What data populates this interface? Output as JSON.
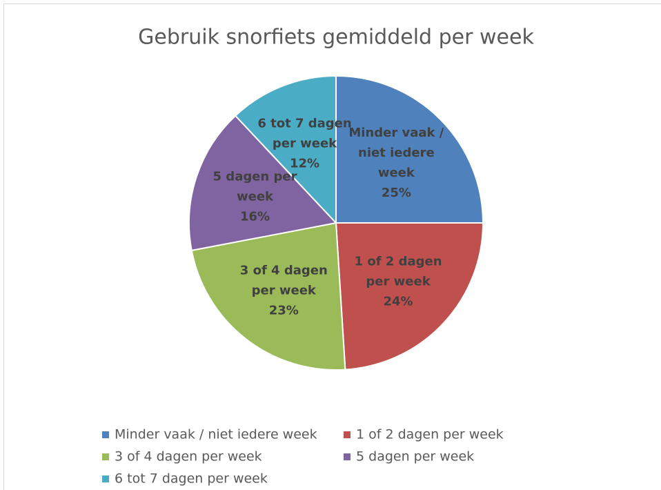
{
  "chart_data": {
    "type": "pie",
    "title": "Gebruik snorfiets gemiddeld per week",
    "categories": [
      "Minder vaak / niet iedere week",
      "1 of 2 dagen per week",
      "3 of 4 dagen per week",
      "5 dagen per week",
      "6 tot 7 dagen per week"
    ],
    "values": [
      25,
      24,
      23,
      16,
      12
    ],
    "value_labels": [
      "25%",
      "24%",
      "23%",
      "16%",
      "12%"
    ],
    "colors": [
      "#4f81bd",
      "#c0504d",
      "#9bbb59",
      "#8064a2",
      "#4bacc6"
    ],
    "legend": "bottom"
  }
}
